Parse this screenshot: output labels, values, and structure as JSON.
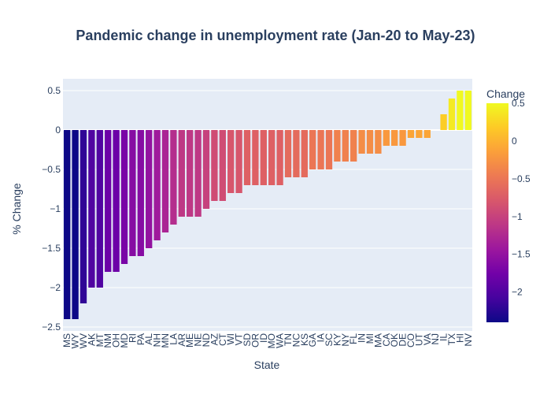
{
  "chart_data": {
    "type": "bar",
    "title": "Pandemic change in unemployment rate (Jan-20 to May-23)",
    "xlabel": "State",
    "ylabel": "% Change",
    "ylim": [
      -2.55,
      0.65
    ],
    "yticks": [
      0.5,
      0,
      -0.5,
      -1,
      -1.5,
      -2,
      -2.5
    ],
    "ytick_labels": [
      "0.5",
      "0",
      "−0.5",
      "−1",
      "−1.5",
      "−2",
      "−2.5"
    ],
    "categories": [
      "MS",
      "WY",
      "WV",
      "AK",
      "MT",
      "NM",
      "OH",
      "MD",
      "RI",
      "PA",
      "AL",
      "NH",
      "MN",
      "LA",
      "AR",
      "ME",
      "NE",
      "ND",
      "AZ",
      "CT",
      "WI",
      "VT",
      "SD",
      "OR",
      "ID",
      "MO",
      "WA",
      "TN",
      "NC",
      "KS",
      "GA",
      "IA",
      "SC",
      "KY",
      "NY",
      "FL",
      "IN",
      "MI",
      "MA",
      "CA",
      "OK",
      "DE",
      "CO",
      "UT",
      "VA",
      "NJ",
      "IL",
      "TX",
      "HI",
      "NV"
    ],
    "values": [
      -2.4,
      -2.4,
      -2.2,
      -2.0,
      -2.0,
      -1.8,
      -1.8,
      -1.7,
      -1.6,
      -1.6,
      -1.5,
      -1.4,
      -1.3,
      -1.2,
      -1.1,
      -1.1,
      -1.1,
      -1.0,
      -0.9,
      -0.9,
      -0.8,
      -0.8,
      -0.7,
      -0.7,
      -0.7,
      -0.7,
      -0.7,
      -0.6,
      -0.6,
      -0.6,
      -0.5,
      -0.5,
      -0.5,
      -0.4,
      -0.4,
      -0.4,
      -0.3,
      -0.3,
      -0.3,
      -0.2,
      -0.2,
      -0.2,
      -0.1,
      -0.1,
      -0.1,
      0.0,
      0.2,
      0.4,
      0.5,
      0.5
    ],
    "colorbar": {
      "title": "Change",
      "range": [
        -2.4,
        0.5
      ],
      "ticks": [
        0.5,
        0,
        -0.5,
        -1,
        -1.5,
        -2
      ],
      "tick_labels": [
        "0.5",
        "0",
        "−0.5",
        "−1",
        "−1.5",
        "−2"
      ],
      "colorscale": [
        "#0d0887",
        "#46039f",
        "#7201a8",
        "#9c179e",
        "#bd3786",
        "#d8576b",
        "#ed7953",
        "#fb9f3a",
        "#fdca26",
        "#f0f921"
      ]
    },
    "grid": true,
    "legend": "colorbar right"
  }
}
